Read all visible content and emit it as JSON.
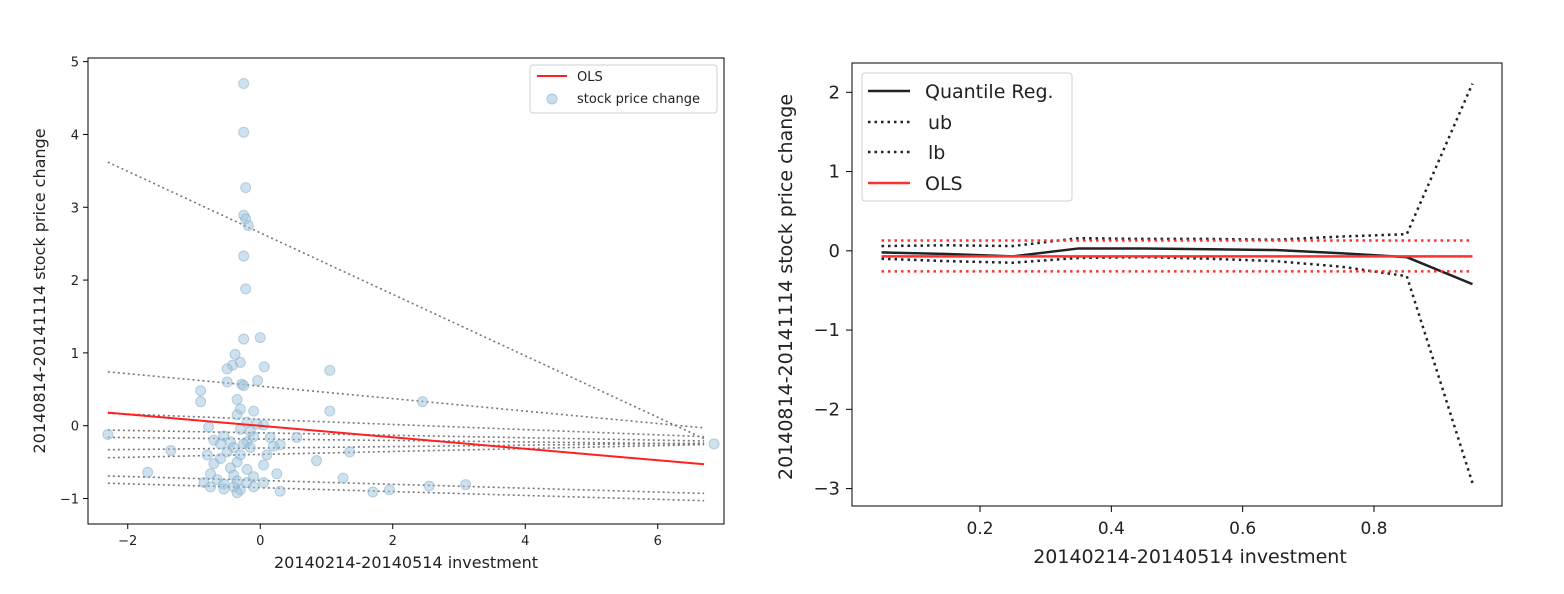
{
  "chart_data": [
    {
      "type": "scatter",
      "xlabel": "20140214-20140514 investment",
      "ylabel": "20140814-20141114 stock price change",
      "xlim": [
        -2.6,
        7.0
      ],
      "ylim": [
        -1.35,
        5.05
      ],
      "xticks": [
        -2,
        0,
        2,
        4,
        6
      ],
      "yticks": [
        -1,
        0,
        1,
        2,
        3,
        4,
        5
      ],
      "legend_position": "top-right",
      "legend": [
        {
          "label": "OLS",
          "kind": "line",
          "color": "#ff2020"
        },
        {
          "label": "stock price change",
          "kind": "marker",
          "color": "#9ec3db"
        }
      ],
      "scatter_color": "#9ec3db",
      "ols_line": {
        "x": [
          -2.3,
          6.7
        ],
        "y": [
          0.18,
          -0.53
        ],
        "color": "#ff2020"
      },
      "quantile_lines": [
        {
          "x": [
            -2.3,
            6.7
          ],
          "y": [
            3.62,
            -0.18
          ]
        },
        {
          "x": [
            -2.3,
            6.7
          ],
          "y": [
            0.74,
            -0.03
          ]
        },
        {
          "x": [
            -2.3,
            6.7
          ],
          "y": [
            0.17,
            -0.15
          ]
        },
        {
          "x": [
            -2.3,
            6.7
          ],
          "y": [
            -0.06,
            -0.21
          ]
        },
        {
          "x": [
            -2.3,
            6.7
          ],
          "y": [
            -0.16,
            -0.25
          ]
        },
        {
          "x": [
            -2.3,
            6.7
          ],
          "y": [
            -0.33,
            -0.24
          ]
        },
        {
          "x": [
            -2.3,
            6.7
          ],
          "y": [
            -0.44,
            -0.26
          ]
        },
        {
          "x": [
            -2.3,
            6.7
          ],
          "y": [
            -0.69,
            -0.93
          ]
        },
        {
          "x": [
            -2.3,
            6.7
          ],
          "y": [
            -0.79,
            -1.03
          ]
        }
      ],
      "points": [
        {
          "x": -0.25,
          "y": 4.7
        },
        {
          "x": -0.25,
          "y": 4.03
        },
        {
          "x": -0.22,
          "y": 3.27
        },
        {
          "x": -0.25,
          "y": 2.89
        },
        {
          "x": -0.22,
          "y": 2.84
        },
        {
          "x": -0.18,
          "y": 2.75
        },
        {
          "x": -0.25,
          "y": 2.33
        },
        {
          "x": -0.22,
          "y": 1.88
        },
        {
          "x": -0.25,
          "y": 1.19
        },
        {
          "x": 0.0,
          "y": 1.21
        },
        {
          "x": -0.38,
          "y": 0.98
        },
        {
          "x": -0.3,
          "y": 0.87
        },
        {
          "x": -0.42,
          "y": 0.83
        },
        {
          "x": 0.06,
          "y": 0.81
        },
        {
          "x": -0.5,
          "y": 0.78
        },
        {
          "x": 1.05,
          "y": 0.76
        },
        {
          "x": -0.04,
          "y": 0.62
        },
        {
          "x": -0.5,
          "y": 0.6
        },
        {
          "x": -0.28,
          "y": 0.57
        },
        {
          "x": -0.25,
          "y": 0.55
        },
        {
          "x": -0.9,
          "y": 0.48
        },
        {
          "x": -0.35,
          "y": 0.36
        },
        {
          "x": -0.9,
          "y": 0.33
        },
        {
          "x": 2.45,
          "y": 0.33
        },
        {
          "x": -0.3,
          "y": 0.23
        },
        {
          "x": -0.1,
          "y": 0.2
        },
        {
          "x": 1.05,
          "y": 0.2
        },
        {
          "x": -0.35,
          "y": 0.15
        },
        {
          "x": -0.2,
          "y": 0.05
        },
        {
          "x": -0.05,
          "y": 0.02
        },
        {
          "x": 0.05,
          "y": 0.01
        },
        {
          "x": -0.78,
          "y": -0.02
        },
        {
          "x": -0.3,
          "y": -0.05
        },
        {
          "x": -0.15,
          "y": -0.08
        },
        {
          "x": -2.3,
          "y": -0.12
        },
        {
          "x": -0.55,
          "y": -0.14
        },
        {
          "x": -0.1,
          "y": -0.15
        },
        {
          "x": 0.15,
          "y": -0.16
        },
        {
          "x": 0.55,
          "y": -0.16
        },
        {
          "x": -0.7,
          "y": -0.2
        },
        {
          "x": -0.45,
          "y": -0.22
        },
        {
          "x": -0.2,
          "y": -0.22
        },
        {
          "x": -0.6,
          "y": -0.25
        },
        {
          "x": -0.25,
          "y": -0.25
        },
        {
          "x": 0.3,
          "y": -0.26
        },
        {
          "x": -0.4,
          "y": -0.3
        },
        {
          "x": -0.15,
          "y": -0.3
        },
        {
          "x": 0.2,
          "y": -0.28
        },
        {
          "x": -1.35,
          "y": -0.34
        },
        {
          "x": -0.5,
          "y": -0.36
        },
        {
          "x": 1.35,
          "y": -0.36
        },
        {
          "x": -0.8,
          "y": -0.4
        },
        {
          "x": -0.3,
          "y": -0.4
        },
        {
          "x": 0.1,
          "y": -0.4
        },
        {
          "x": -0.6,
          "y": -0.45
        },
        {
          "x": 0.85,
          "y": -0.48
        },
        {
          "x": -0.35,
          "y": -0.5
        },
        {
          "x": -0.7,
          "y": -0.52
        },
        {
          "x": 0.05,
          "y": -0.54
        },
        {
          "x": -0.45,
          "y": -0.58
        },
        {
          "x": -0.2,
          "y": -0.6
        },
        {
          "x": -1.7,
          "y": -0.64
        },
        {
          "x": -0.75,
          "y": -0.66
        },
        {
          "x": 0.25,
          "y": -0.66
        },
        {
          "x": -0.4,
          "y": -0.68
        },
        {
          "x": -0.1,
          "y": -0.7
        },
        {
          "x": 1.25,
          "y": -0.72
        },
        {
          "x": -0.65,
          "y": -0.74
        },
        {
          "x": -0.35,
          "y": -0.76
        },
        {
          "x": -0.85,
          "y": -0.78
        },
        {
          "x": -0.2,
          "y": -0.78
        },
        {
          "x": 0.05,
          "y": -0.78
        },
        {
          "x": -0.55,
          "y": -0.8
        },
        {
          "x": 3.1,
          "y": -0.81
        },
        {
          "x": -0.75,
          "y": -0.84
        },
        {
          "x": -0.4,
          "y": -0.84
        },
        {
          "x": -0.1,
          "y": -0.84
        },
        {
          "x": 2.55,
          "y": -0.83
        },
        {
          "x": -0.55,
          "y": -0.87
        },
        {
          "x": -0.3,
          "y": -0.88
        },
        {
          "x": 1.95,
          "y": -0.88
        },
        {
          "x": -0.35,
          "y": -0.92
        },
        {
          "x": 0.3,
          "y": -0.9
        },
        {
          "x": 1.7,
          "y": -0.91
        },
        {
          "x": 6.85,
          "y": -0.25
        }
      ]
    },
    {
      "type": "line",
      "xlabel": "20140214-20140514 investment",
      "ylabel": "20140814-20141114 stock price change",
      "xlim": [
        0.005,
        0.995
      ],
      "ylim": [
        -3.22,
        2.37
      ],
      "xticks": [
        0.2,
        0.4,
        0.6,
        0.8
      ],
      "yticks": [
        -3,
        -2,
        -1,
        0,
        1,
        2
      ],
      "legend_position": "top-left",
      "legend": [
        {
          "label": "Quantile Reg.",
          "kind": "solid",
          "color": "#222222"
        },
        {
          "label": "ub",
          "kind": "dotted",
          "color": "#222222"
        },
        {
          "label": "lb",
          "kind": "dotted",
          "color": "#222222"
        },
        {
          "label": "OLS",
          "kind": "solid",
          "color": "#ff3030"
        }
      ],
      "series": [
        {
          "name": "Quantile Reg.",
          "style": "solid",
          "color": "#222222",
          "x": [
            0.05,
            0.15,
            0.25,
            0.35,
            0.45,
            0.55,
            0.65,
            0.75,
            0.85,
            0.95
          ],
          "y": [
            -0.02,
            -0.04,
            -0.07,
            0.03,
            0.03,
            0.02,
            0.01,
            -0.03,
            -0.08,
            -0.42
          ]
        },
        {
          "name": "ub",
          "style": "dotted",
          "color": "#222222",
          "x": [
            0.05,
            0.15,
            0.25,
            0.35,
            0.45,
            0.55,
            0.65,
            0.75,
            0.85,
            0.95
          ],
          "y": [
            0.06,
            0.07,
            0.06,
            0.16,
            0.15,
            0.15,
            0.14,
            0.18,
            0.21,
            2.11
          ]
        },
        {
          "name": "lb",
          "style": "dotted",
          "color": "#222222",
          "x": [
            0.05,
            0.15,
            0.25,
            0.35,
            0.45,
            0.55,
            0.65,
            0.75,
            0.85,
            0.95
          ],
          "y": [
            -0.1,
            -0.13,
            -0.15,
            -0.09,
            -0.08,
            -0.1,
            -0.13,
            -0.2,
            -0.32,
            -2.93
          ]
        },
        {
          "name": "OLS",
          "style": "solid",
          "color": "#ff3030",
          "x": [
            0.05,
            0.95
          ],
          "y": [
            -0.07,
            -0.07
          ]
        },
        {
          "name": "OLS upper",
          "style": "dotted",
          "color": "#ff3030",
          "x": [
            0.05,
            0.95
          ],
          "y": [
            0.13,
            0.13
          ]
        },
        {
          "name": "OLS lower",
          "style": "dotted",
          "color": "#ff3030",
          "x": [
            0.05,
            0.95
          ],
          "y": [
            -0.26,
            -0.26
          ]
        }
      ]
    }
  ]
}
